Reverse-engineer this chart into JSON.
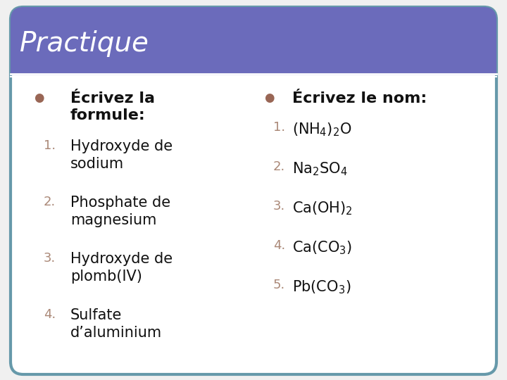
{
  "title": "Practique",
  "title_bg": "#6B6BBB",
  "title_color": "#ffffff",
  "card_bg": "#ffffff",
  "card_border": "#6699AA",
  "outer_bg": "#f0f0f0",
  "bullet_color": "#996655",
  "number_color": "#AA8877",
  "left_header": "Écrivez la\nformule:",
  "left_items": [
    "Hydroxyde de\nsodium",
    "Phosphate de\nmagnesium",
    "Hydroxyde de\nplomb(IV)",
    "Sulfate\nd’aluminium"
  ],
  "right_header": "Écrivez le nom:",
  "right_items": [
    "(NH$_4$)$_2$O",
    "Na$_2$SO$_4$",
    "Ca(OH)$_2$",
    "Ca(CO$_3$)",
    "Pb(CO$_3$)"
  ],
  "text_color": "#111111",
  "header_fontsize": 16,
  "item_fontsize": 15,
  "number_fontsize": 13,
  "title_fontsize": 28
}
